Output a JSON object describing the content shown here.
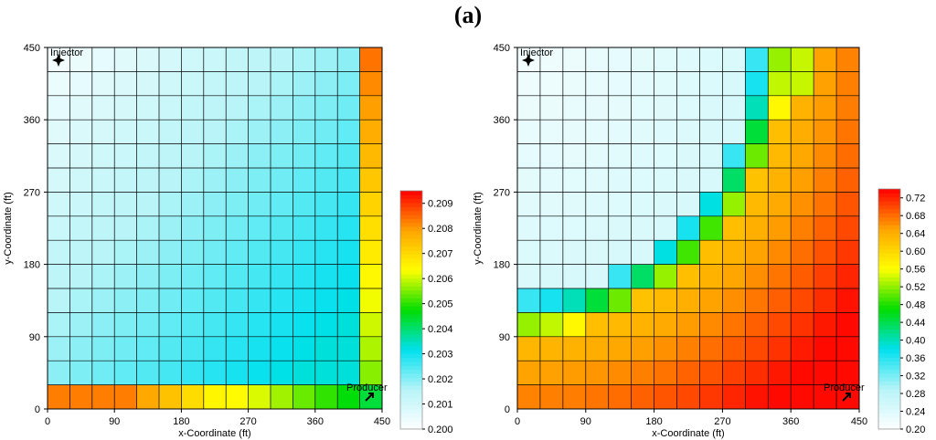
{
  "figure_title": "(a)",
  "chart_data": [
    {
      "type": "heatmap",
      "title": "",
      "xlabel": "x-Coordinate (ft)",
      "ylabel": "y-Coordinate (ft)",
      "xlim": [
        0,
        450
      ],
      "ylim": [
        0,
        450
      ],
      "xticks": [
        "0",
        "90",
        "180",
        "270",
        "360",
        "450"
      ],
      "yticks": [
        "0",
        "90",
        "180",
        "270",
        "360",
        "450"
      ],
      "grid": true,
      "grid_cells": [
        15,
        15
      ],
      "annotations": {
        "injector": "Injector",
        "producer": "Producer"
      },
      "colorbar": {
        "min": 0.2,
        "max": 0.2095,
        "ticks": [
          "0.200",
          "0.201",
          "0.202",
          "0.203",
          "0.204",
          "0.205",
          "0.206",
          "0.207",
          "0.208",
          "0.209"
        ]
      },
      "field": "first",
      "values_note": "cell values (rows ordered from top y=450 to bottom y=0, columns x=0 to 450)",
      "values": []
    },
    {
      "type": "heatmap",
      "title": "",
      "xlabel": "x-Coordinate (ft)",
      "ylabel": "y-Coordinate (ft)",
      "xlim": [
        0,
        450
      ],
      "ylim": [
        0,
        450
      ],
      "xticks": [
        "0",
        "90",
        "180",
        "270",
        "360",
        "450"
      ],
      "yticks": [
        "90",
        "180",
        "270",
        "360",
        "450"
      ],
      "y_zero_label": "0",
      "grid": true,
      "grid_cells": [
        15,
        15
      ],
      "annotations": {
        "injector": "Injector",
        "producer": "Producer"
      },
      "colorbar": {
        "min": 0.2,
        "max": 0.74,
        "ticks": [
          "0.20",
          "0.24",
          "0.28",
          "0.32",
          "0.36",
          "0.40",
          "0.44",
          "0.48",
          "0.52",
          "0.56",
          "0.60",
          "0.64",
          "0.68",
          "0.72"
        ]
      },
      "field": "second",
      "values": []
    }
  ],
  "colors": {
    "colormap": [
      "#ffffff",
      "#b7f4f8",
      "#00e0ef",
      "#00dd00",
      "#ffff00",
      "#ffa500",
      "#ff0000"
    ],
    "grid": "#000000"
  }
}
